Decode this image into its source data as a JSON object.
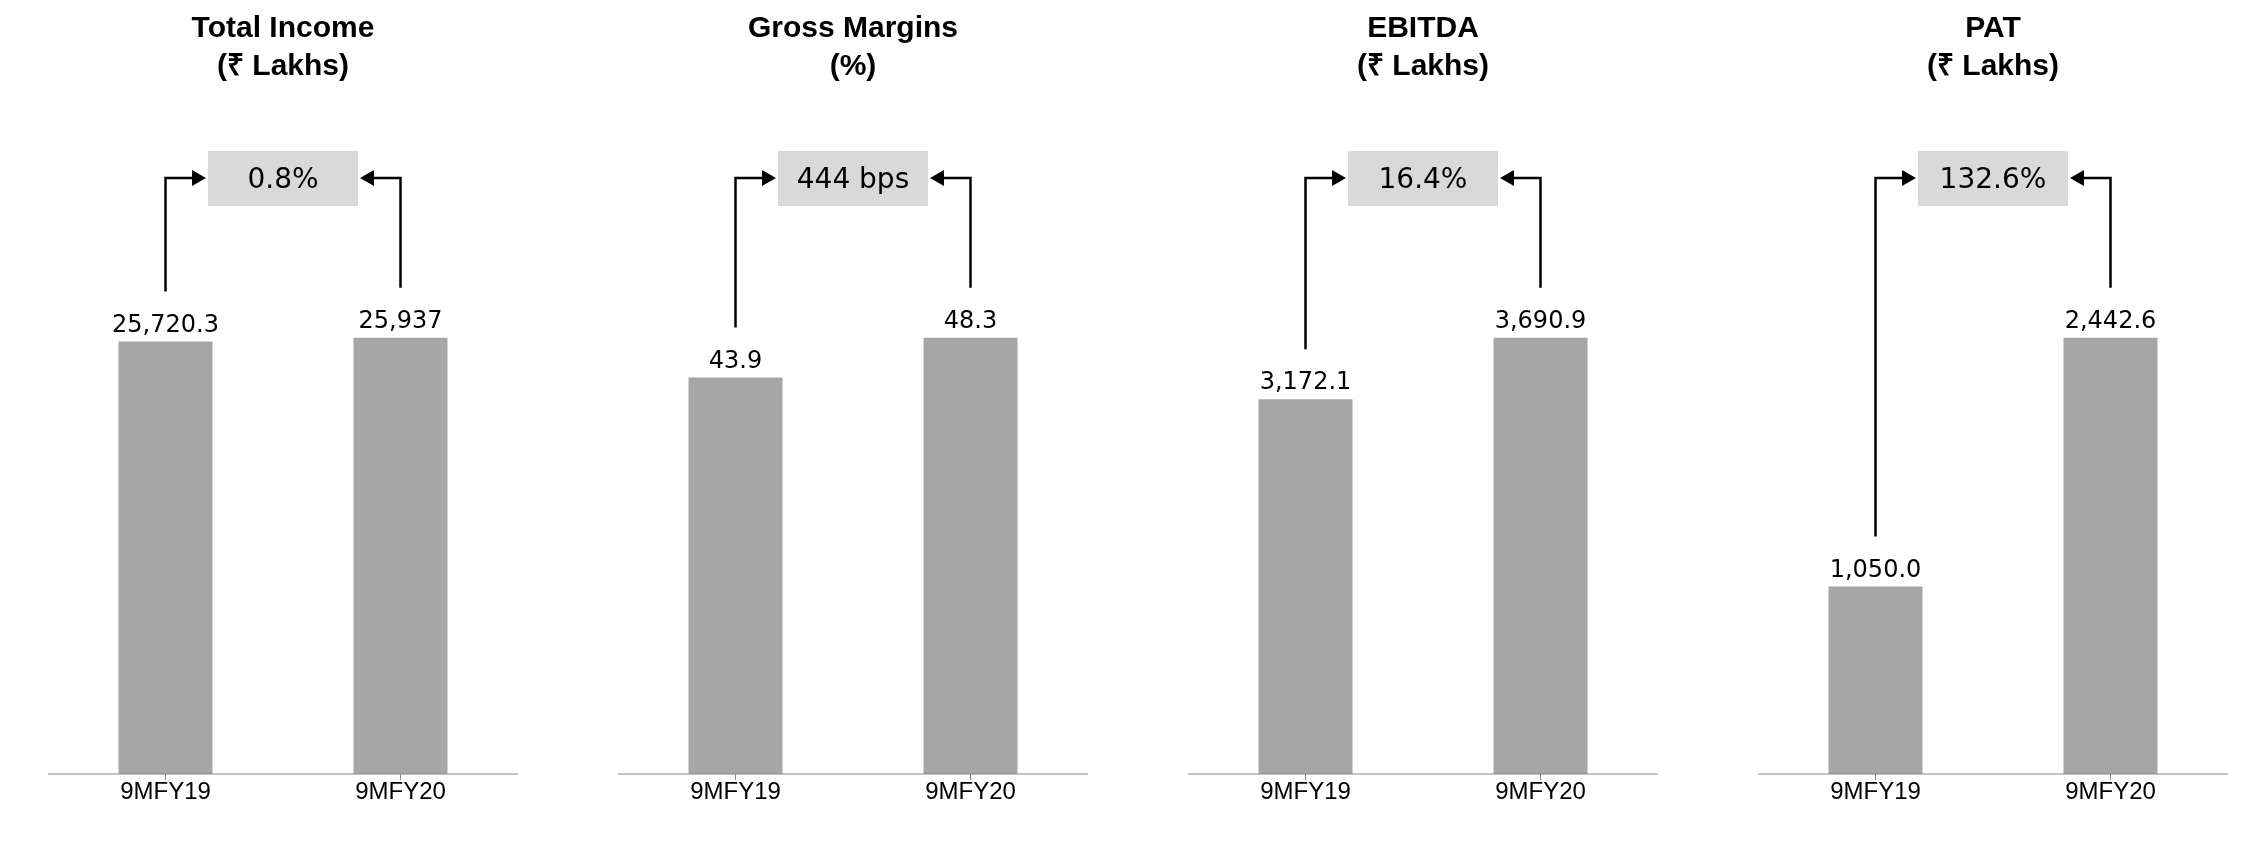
{
  "chart_data": [
    {
      "type": "bar",
      "title": "Total Income\n(₹ Lakhs)",
      "categories": [
        "9MFY19",
        "9MFY20"
      ],
      "values": [
        25720.3,
        25937
      ],
      "value_labels": [
        "25,720.3",
        "25,937"
      ],
      "color": "#a6a6a6",
      "annotations": [
        "0.8%"
      ]
    },
    {
      "type": "bar",
      "title": "Gross Margins\n(%)",
      "categories": [
        "9MFY19",
        "9MFY20"
      ],
      "values": [
        43.9,
        48.3
      ],
      "value_labels": [
        "43.9",
        "48.3"
      ],
      "color": "#a6a6a6",
      "annotations": [
        "444 bps"
      ]
    },
    {
      "type": "bar",
      "title": "EBITDA\n(₹ Lakhs)",
      "categories": [
        "9MFY19",
        "9MFY20"
      ],
      "values": [
        3172.1,
        3690.9
      ],
      "value_labels": [
        "3,172.1",
        "3,690.9"
      ],
      "color": "#a6a6a6",
      "annotations": [
        "16.4%"
      ]
    },
    {
      "type": "bar",
      "title": "PAT\n(₹ Lakhs)",
      "categories": [
        "9MFY19",
        "9MFY20"
      ],
      "values": [
        1050.0,
        2442.6
      ],
      "value_labels": [
        "1,050.0",
        "2,442.6"
      ],
      "color": "#a6a6a6",
      "annotations": [
        "132.6%"
      ]
    }
  ]
}
